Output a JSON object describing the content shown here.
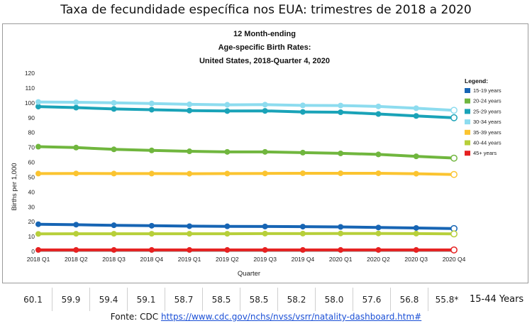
{
  "header": {
    "title": "Taxa de fecundidade específica nos EUA: trimestres de 2018 a 2020"
  },
  "chart_data": {
    "type": "line",
    "title_lines": [
      "12 Month-ending",
      "Age-specific Birth Rates:",
      "United States, 2018-Quarter 4, 2020"
    ],
    "xlabel": "Quarter",
    "ylabel": "Births per 1,000",
    "ylim": [
      0,
      120
    ],
    "yticks": [
      0,
      10,
      20,
      30,
      40,
      50,
      60,
      70,
      80,
      90,
      100,
      110,
      120
    ],
    "grid": false,
    "legend_position": "right",
    "legend_title": "Legend:",
    "categories": [
      "2018 Q1",
      "2018 Q2",
      "2018 Q3",
      "2018 Q4",
      "2019 Q1",
      "2019 Q2",
      "2019 Q3",
      "2019 Q4",
      "2020 Q1",
      "2020 Q2",
      "2020 Q3",
      "2020 Q4"
    ],
    "series": [
      {
        "name": "15-19 years",
        "color": "#1765b4",
        "values": [
          18.3,
          18.0,
          17.6,
          17.3,
          17.0,
          16.9,
          16.8,
          16.7,
          16.5,
          16.1,
          15.8,
          15.4
        ]
      },
      {
        "name": "20-24 years",
        "color": "#70b63e",
        "values": [
          70.5,
          69.9,
          68.7,
          68.0,
          67.4,
          67.0,
          67.0,
          66.5,
          66.0,
          65.3,
          64.0,
          62.8
        ]
      },
      {
        "name": "25-29 years",
        "color": "#1aa3b8",
        "values": [
          97.5,
          96.8,
          95.9,
          95.4,
          94.8,
          94.5,
          94.6,
          93.9,
          93.7,
          92.5,
          91.2,
          90.0
        ]
      },
      {
        "name": "30-34 years",
        "color": "#8ddcef",
        "values": [
          100.6,
          100.4,
          100.0,
          99.6,
          99.0,
          98.7,
          98.8,
          98.3,
          98.2,
          97.6,
          96.4,
          95.0
        ]
      },
      {
        "name": "35-39 years",
        "color": "#fbc430",
        "values": [
          52.4,
          52.5,
          52.4,
          52.4,
          52.3,
          52.4,
          52.5,
          52.6,
          52.6,
          52.6,
          52.3,
          51.8
        ]
      },
      {
        "name": "40-44 years",
        "color": "#b7cf3a",
        "values": [
          11.8,
          11.9,
          11.9,
          11.9,
          11.9,
          11.9,
          12.0,
          12.0,
          12.1,
          12.1,
          12.0,
          11.8
        ]
      },
      {
        "name": "45+ years",
        "color": "#e62121",
        "values": [
          1.0,
          1.0,
          1.0,
          1.0,
          1.0,
          1.0,
          1.0,
          1.0,
          1.0,
          1.0,
          1.0,
          1.0
        ]
      }
    ]
  },
  "summary": {
    "values": [
      "60.1",
      "59.9",
      "59.4",
      "59.1",
      "58.7",
      "58.5",
      "58.5",
      "58.2",
      "58.0",
      "57.6",
      "56.8",
      "55.8*"
    ],
    "label": "15-44 Years"
  },
  "source": {
    "prefix": "Fonte: CDC ",
    "url": "https://www.cdc.gov/nchs/nvss/vsrr/natality-dashboard.htm#"
  }
}
